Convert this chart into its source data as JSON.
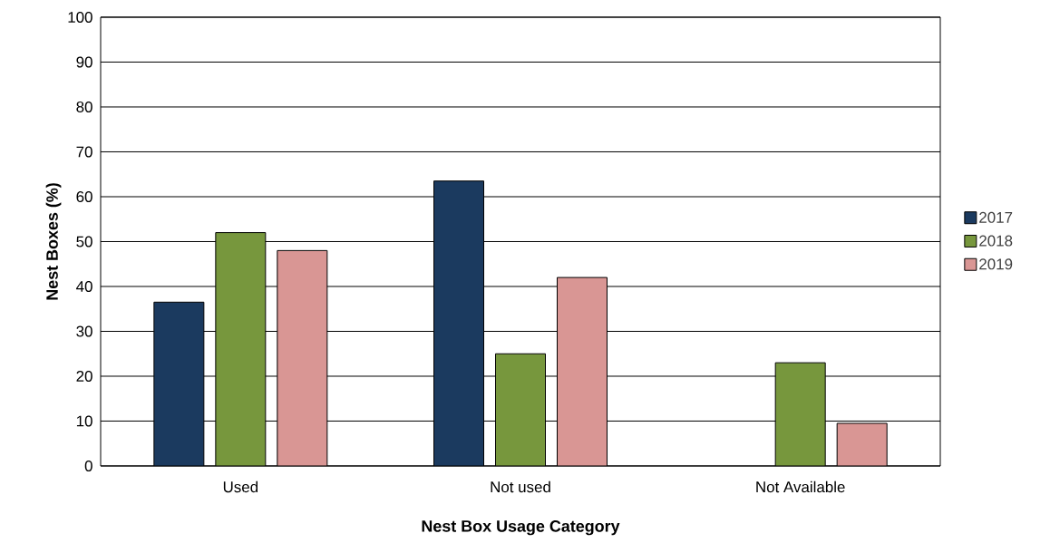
{
  "chart_data": {
    "type": "bar",
    "xlabel": "Nest Box Usage Category",
    "ylabel": "Nest Boxes (%)",
    "categories": [
      "Used",
      "Not used",
      "Not Available"
    ],
    "series": [
      {
        "name": "2017",
        "color": "#1b3a5f",
        "values": [
          36.5,
          63.5,
          null
        ]
      },
      {
        "name": "2018",
        "color": "#77973d",
        "values": [
          52,
          25,
          23
        ]
      },
      {
        "name": "2019",
        "color": "#d99694",
        "values": [
          48,
          42,
          9.5
        ]
      }
    ],
    "ylim": [
      0,
      100
    ],
    "yticks": [
      0,
      10,
      20,
      30,
      40,
      50,
      60,
      70,
      80,
      90,
      100
    ],
    "grid": "y",
    "legend": "right"
  }
}
